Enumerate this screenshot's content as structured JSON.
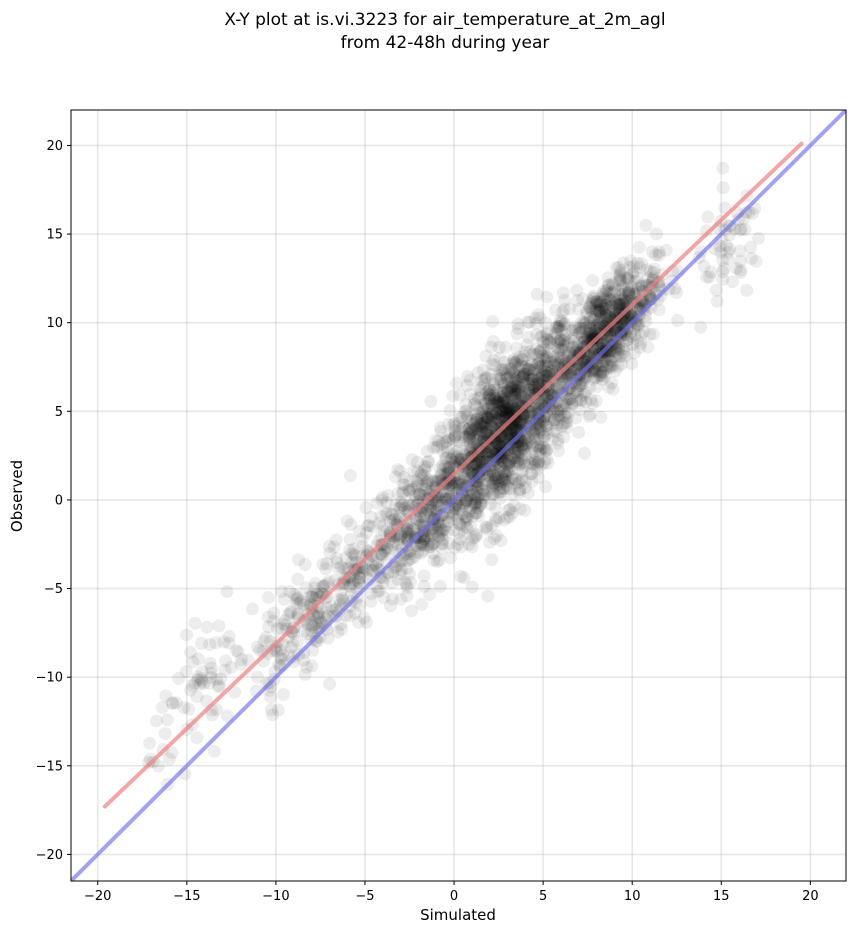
{
  "chart_data": {
    "type": "scatter",
    "title_lines": [
      "X-Y plot at is.vi.3223 for air_temperature_at_2m_agl",
      "from 42-48h during year"
    ],
    "xlabel": "Simulated",
    "ylabel": "Observed",
    "xlim": [
      -21.5,
      22.0
    ],
    "ylim": [
      -21.5,
      22.0
    ],
    "xticks": [
      -20,
      -15,
      -10,
      -5,
      0,
      5,
      10,
      15,
      20
    ],
    "yticks": [
      -20,
      -15,
      -10,
      -5,
      0,
      5,
      10,
      15,
      20
    ],
    "xtick_labels": [
      "−20",
      "−15",
      "−10",
      "−5",
      "0",
      "5",
      "10",
      "15",
      "20"
    ],
    "ytick_labels": [
      "−20",
      "−15",
      "−10",
      "−5",
      "0",
      "5",
      "10",
      "15",
      "20"
    ],
    "grid": true,
    "points": {
      "color": "#000000",
      "alpha": 0.07,
      "clusters": [
        {
          "cx": 3.0,
          "cy": 4.0,
          "sx": 3.5,
          "sy": 3.8,
          "n": 1400
        },
        {
          "cx": 8.5,
          "cy": 9.5,
          "sx": 2.6,
          "sy": 2.6,
          "n": 700
        },
        {
          "cx": -2.0,
          "cy": -1.0,
          "sx": 3.5,
          "sy": 3.0,
          "n": 450
        },
        {
          "cx": -8.0,
          "cy": -6.5,
          "sx": 3.0,
          "sy": 2.8,
          "n": 220
        },
        {
          "cx": -14.0,
          "cy": -10.5,
          "sx": 2.8,
          "sy": 2.8,
          "n": 70
        },
        {
          "cx": 15.5,
          "cy": 14.0,
          "sx": 1.8,
          "sy": 2.8,
          "n": 55
        }
      ]
    },
    "lines": [
      {
        "role": "fit",
        "color": "#f08080",
        "alpha": 0.7,
        "x": [
          -19.6,
          19.5
        ],
        "y": [
          -17.3,
          20.1
        ]
      },
      {
        "role": "identity",
        "color": "#7070f0",
        "alpha": 0.65,
        "x": [
          -21.5,
          22.0
        ],
        "y": [
          -21.5,
          22.0
        ]
      }
    ]
  }
}
